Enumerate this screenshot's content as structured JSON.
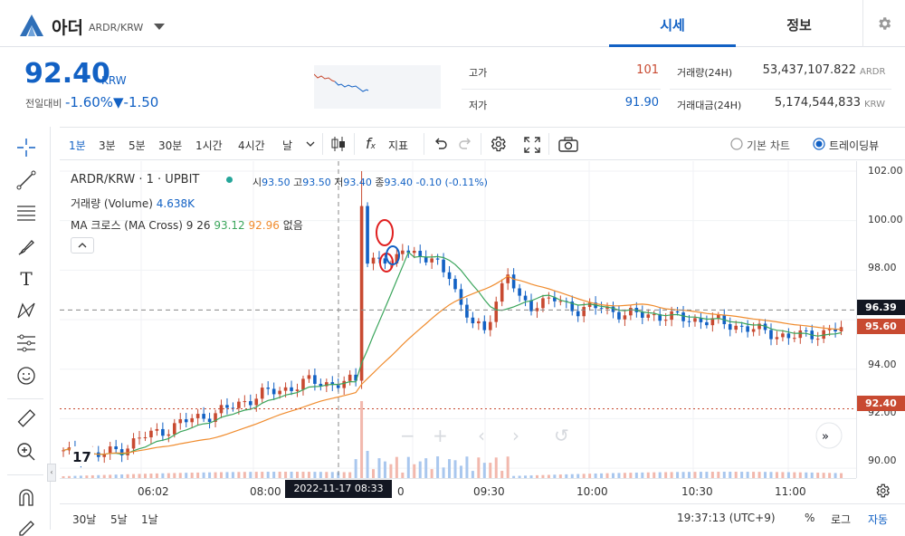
{
  "header": {
    "coin_name": "아더",
    "pair": "ARDR/KRW",
    "tabs": [
      "시세",
      "정보"
    ]
  },
  "summary": {
    "price": "92.40",
    "currency": "KRW",
    "change_label": "전일대비",
    "change_pct": "-1.60%",
    "change_amt": "▼-1.50",
    "high_label": "고가",
    "high": "101",
    "low_label": "저가",
    "low": "91.90",
    "vol_label": "거래량(24H)",
    "vol": "53,437,107.822",
    "vol_unit": "ARDR",
    "amt_label": "거래대금(24H)",
    "amt": "5,174,544,833",
    "amt_unit": "KRW"
  },
  "toolbar": {
    "intervals": [
      "1분",
      "3분",
      "5분",
      "30분",
      "1시간",
      "4시간",
      "날"
    ],
    "indicator_label": "지표",
    "basic_chart": "기본 차트",
    "tradingview": "트레이딩뷰"
  },
  "legend": {
    "symbol": "ARDR/KRW · 1 · UPBIT",
    "o_label": "시",
    "o": "93.50",
    "h_label": "고",
    "h": "93.50",
    "l_label": "저",
    "l": "93.40",
    "c_label": "종",
    "c": "93.40",
    "chg": "-0.10 (-0.11%)",
    "volume_label": "거래량 (Volume)",
    "volume": "4.638K",
    "ma_label": "MA 크로스 (MA Cross) 9 26",
    "ma1": "93.12",
    "ma2": "92.96",
    "ma_none": "없음"
  },
  "yaxis": {
    "ticks": [
      "102.00",
      "100.00",
      "98.00",
      "94.00",
      "92.00",
      "90.00"
    ],
    "crosshair_label": "96.39",
    "last_label": "95.60",
    "ref_label": "92.40"
  },
  "xaxis": {
    "ticks": [
      "06:02",
      "08:00",
      "09:30",
      "10:00",
      "10:30",
      "11:00"
    ],
    "crosshair_time": "2022-11-17   08:33",
    "partial": "0"
  },
  "bottom": {
    "ranges": [
      "30날",
      "5날",
      "1날"
    ],
    "clock": "19:37:13 (UTC+9)",
    "pct": "%",
    "log": "로그",
    "auto": "자동"
  },
  "colors": {
    "blue": "#1261c4",
    "red": "#c84a31",
    "ma_green": "#3ba55c",
    "ma_orange": "#f08c2e"
  },
  "chart_data": {
    "type": "candlestick",
    "symbol": "ARDR/KRW",
    "interval": "1",
    "ylim": [
      89.6,
      102.4
    ],
    "ma_periods": [
      9,
      26
    ],
    "close_points": [
      [
        0,
        90.6
      ],
      [
        6,
        90.5
      ],
      [
        10,
        90.8
      ],
      [
        14,
        91.3
      ],
      [
        18,
        91.6
      ],
      [
        22,
        92.0
      ],
      [
        26,
        92.2
      ],
      [
        30,
        92.6
      ],
      [
        34,
        93.0
      ],
      [
        38,
        93.2
      ],
      [
        42,
        93.5
      ],
      [
        46,
        93.4
      ],
      [
        50,
        93.5
      ],
      [
        51,
        100.8
      ],
      [
        52,
        98.3
      ],
      [
        54,
        98.6
      ],
      [
        56,
        98.0
      ],
      [
        58,
        99.0
      ],
      [
        60,
        98.7
      ],
      [
        62,
        98.4
      ],
      [
        64,
        98.2
      ],
      [
        66,
        97.9
      ],
      [
        68,
        96.5
      ],
      [
        70,
        95.8
      ],
      [
        72,
        95.6
      ],
      [
        74,
        96.8
      ],
      [
        76,
        97.8
      ],
      [
        78,
        96.8
      ],
      [
        80,
        96.6
      ],
      [
        84,
        96.8
      ],
      [
        88,
        96.4
      ],
      [
        92,
        96.5
      ],
      [
        96,
        96.2
      ],
      [
        100,
        96.2
      ],
      [
        104,
        96.1
      ],
      [
        108,
        96.0
      ],
      [
        112,
        95.9
      ],
      [
        116,
        95.7
      ],
      [
        120,
        95.5
      ],
      [
        124,
        95.3
      ],
      [
        128,
        95.4
      ],
      [
        132,
        95.6
      ]
    ]
  }
}
